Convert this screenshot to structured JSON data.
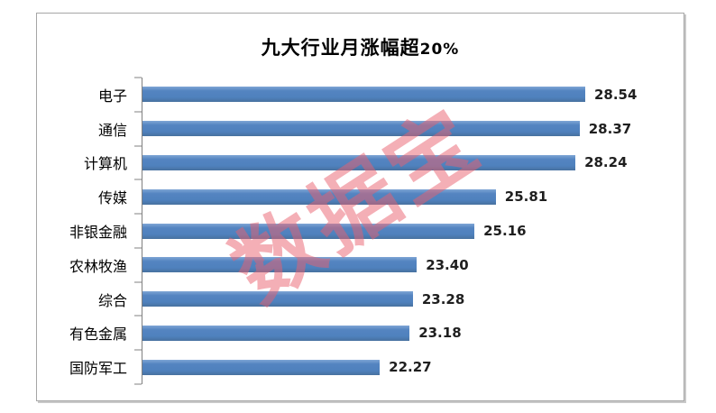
{
  "page": {
    "background_color": "#ffffff",
    "frame_border_color": "#a6a6a6"
  },
  "title": {
    "main": "九大行业月涨幅超",
    "suffix": "20%"
  },
  "watermark": {
    "text": "数据宝",
    "color": "#e95f6e"
  },
  "chart_data": {
    "type": "bar",
    "orientation": "horizontal",
    "title": "九大行业月涨幅超20%",
    "categories": [
      "电子",
      "通信",
      "计算机",
      "传媒",
      "非银金融",
      "农林牧渔",
      "综合",
      "有色金属",
      "国防军工"
    ],
    "values": [
      28.54,
      28.37,
      28.24,
      25.81,
      25.16,
      23.4,
      23.28,
      23.18,
      22.27
    ],
    "value_labels": [
      "28.54",
      "28.37",
      "28.24",
      "25.81",
      "25.16",
      "23.40",
      "23.28",
      "23.18",
      "22.27"
    ],
    "xlabel": "",
    "ylabel": "",
    "xlim": [
      15,
      30
    ],
    "grid": false,
    "legend_position": "none",
    "bar_color": "#4f81bd",
    "axis_color": "#808080",
    "value_label_color": "#1f1f1f"
  }
}
